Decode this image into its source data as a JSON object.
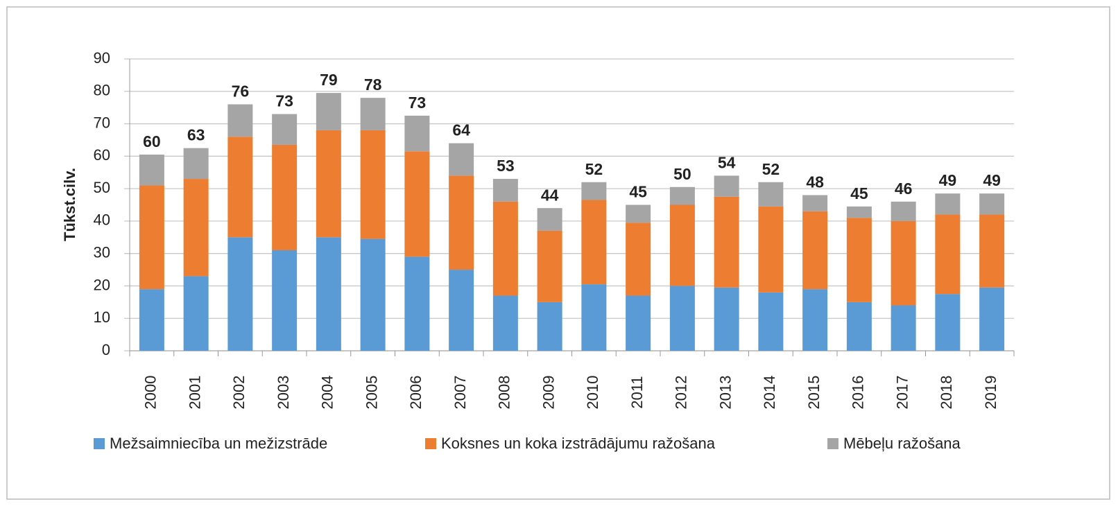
{
  "chart_data": {
    "type": "stacked_bar",
    "y_label": "Tūkst.cilv.",
    "categories": [
      "2000",
      "2001",
      "2002",
      "2003",
      "2004",
      "2005",
      "2006",
      "2007",
      "2008",
      "2009",
      "2010",
      "2011",
      "2012",
      "2013",
      "2014",
      "2015",
      "2016",
      "2017",
      "2018",
      "2019"
    ],
    "series": [
      {
        "name": "Mežsaimniecība un mežizstrāde",
        "color": "#5b9bd5",
        "values": [
          19,
          23,
          35,
          31,
          35,
          34.5,
          29,
          25,
          17,
          15,
          20.5,
          17,
          20,
          19.5,
          18,
          19,
          15,
          14,
          17.5,
          19.5
        ]
      },
      {
        "name": "Koksnes un koka izstrādājumu ražošana",
        "color": "#ed7d31",
        "values": [
          32,
          30,
          31,
          32.5,
          33,
          33.5,
          32.5,
          29,
          29,
          22,
          26,
          22.5,
          25,
          28,
          26.5,
          24,
          26,
          26,
          24.5,
          22.5
        ]
      },
      {
        "name": "Mēbeļu ražošana",
        "color": "#a5a5a5",
        "values": [
          9.5,
          9.5,
          10,
          9.5,
          11.5,
          10,
          11,
          10,
          7,
          7,
          5.5,
          5.5,
          5.5,
          6.5,
          7.5,
          5,
          3.5,
          6,
          6.5,
          6.5
        ]
      }
    ],
    "totals": [
      60,
      63,
      76,
      73,
      79,
      78,
      73,
      64,
      53,
      44,
      52,
      45,
      50,
      54,
      52,
      48,
      45,
      46,
      49,
      49
    ],
    "ylim": [
      0,
      90
    ],
    "yticks": [
      0,
      10,
      20,
      30,
      40,
      50,
      60,
      70,
      80,
      90
    ],
    "grid": true,
    "legend": "bottom"
  }
}
